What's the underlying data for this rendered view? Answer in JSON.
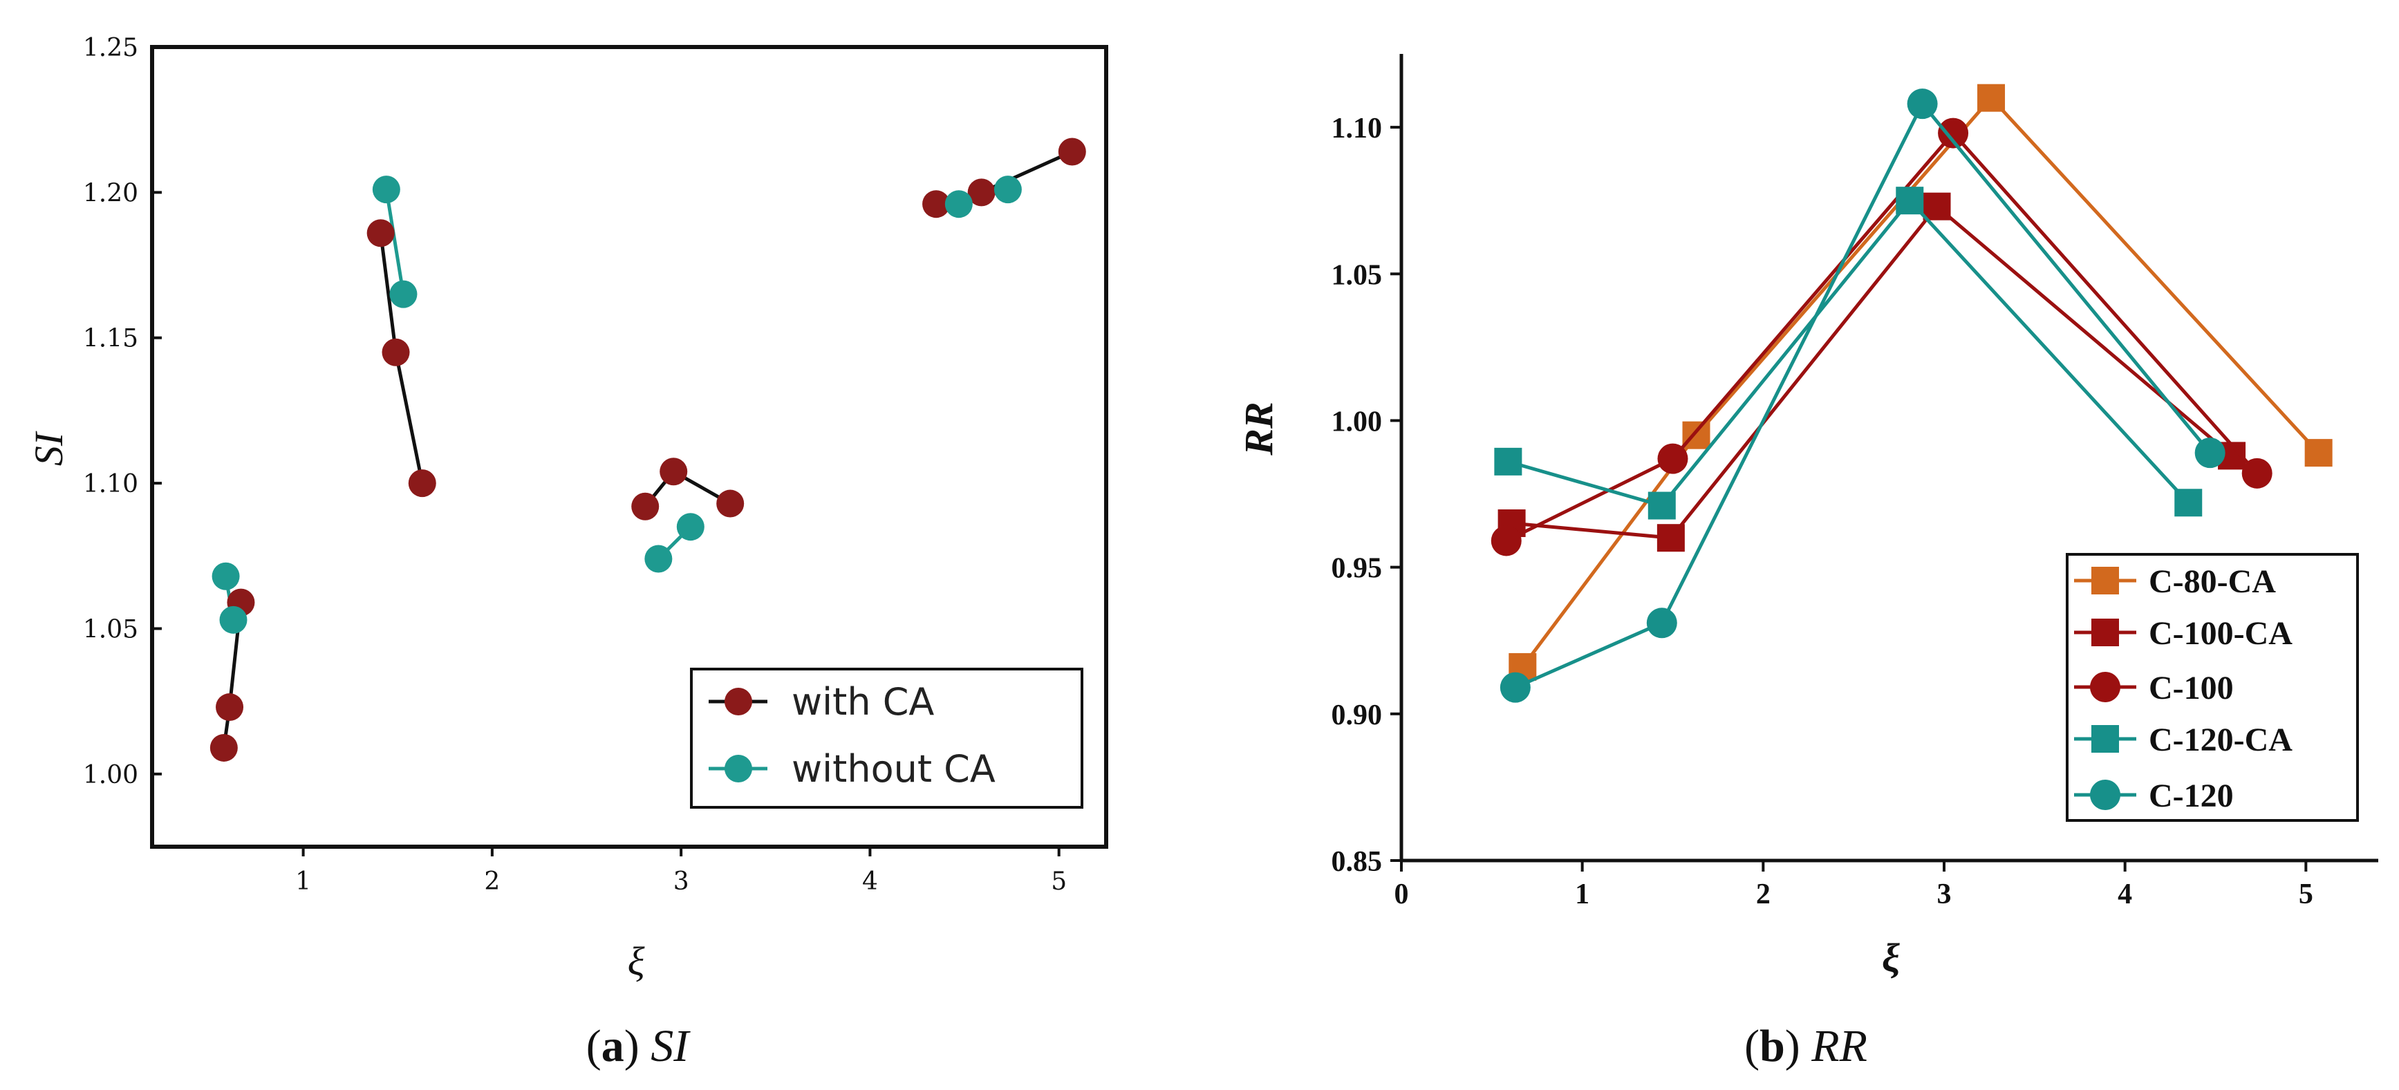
{
  "colors": {
    "with_ca": "#8b1a1a",
    "without_ca": "#1e9a90",
    "c80ca": "#d2691e",
    "c100ca": "#9b1010",
    "c100": "#9b1010",
    "c120ca": "#17908a",
    "c120": "#17908a",
    "line_black": "#111111"
  },
  "captions": {
    "a_letter": "a",
    "a_label": "SI",
    "b_letter": "b",
    "b_label": "RR"
  },
  "chart_data": [
    {
      "type": "scatter",
      "title": "",
      "xlabel": "ξ",
      "ylabel": "SI",
      "xlim": [
        0.2,
        5.25
      ],
      "ylim": [
        0.975,
        1.25
      ],
      "xticks": [
        1,
        2,
        3,
        4,
        5
      ],
      "yticks": [
        1.0,
        1.05,
        1.1,
        1.15,
        1.2,
        1.25
      ],
      "xtick_labels": [
        "1",
        "2",
        "3",
        "4",
        "5"
      ],
      "ytick_labels": [
        "1.00",
        "1.05",
        "1.10",
        "1.15",
        "1.20",
        "1.25"
      ],
      "legend": {
        "position": "bottom-right",
        "entries": [
          "with CA",
          "without CA"
        ]
      },
      "groups": [
        {
          "with_ca": [
            [
              0.58,
              1.009
            ],
            [
              0.61,
              1.023
            ],
            [
              0.67,
              1.059
            ]
          ],
          "without_ca": [
            [
              0.59,
              1.068
            ],
            [
              0.63,
              1.053
            ]
          ]
        },
        {
          "with_ca": [
            [
              1.41,
              1.186
            ],
            [
              1.49,
              1.145
            ],
            [
              1.63,
              1.1
            ]
          ],
          "without_ca": [
            [
              1.44,
              1.201
            ],
            [
              1.53,
              1.165
            ]
          ]
        },
        {
          "with_ca": [
            [
              2.81,
              1.092
            ],
            [
              2.96,
              1.104
            ],
            [
              3.26,
              1.093
            ]
          ],
          "without_ca": [
            [
              2.88,
              1.074
            ],
            [
              3.05,
              1.085
            ]
          ]
        },
        {
          "with_ca": [
            [
              4.35,
              1.196
            ],
            [
              4.59,
              1.2
            ],
            [
              5.07,
              1.214
            ]
          ],
          "without_ca": [
            [
              4.47,
              1.196
            ],
            [
              4.73,
              1.201
            ]
          ]
        }
      ]
    },
    {
      "type": "line",
      "title": "",
      "xlabel": "ξ",
      "ylabel": "RR",
      "xlim": [
        0,
        5.4
      ],
      "ylim": [
        0.85,
        1.125
      ],
      "xticks": [
        0,
        1,
        2,
        3,
        4,
        5
      ],
      "yticks": [
        0.85,
        0.9,
        0.95,
        1.0,
        1.05,
        1.1
      ],
      "xtick_labels": [
        "0",
        "1",
        "2",
        "3",
        "4",
        "5"
      ],
      "ytick_labels": [
        "0.85",
        "0.90",
        "0.95",
        "1.00",
        "1.05",
        "1.10"
      ],
      "legend": {
        "position": "bottom-right"
      },
      "series": [
        {
          "name": "C-80-CA",
          "marker": "square",
          "x": [
            0.67,
            1.63,
            3.26,
            5.07
          ],
          "y": [
            0.916,
            0.995,
            1.11,
            0.989
          ]
        },
        {
          "name": "C-100-CA",
          "marker": "square",
          "x": [
            0.61,
            1.49,
            2.96,
            4.59
          ],
          "y": [
            0.965,
            0.96,
            1.073,
            0.988
          ]
        },
        {
          "name": "C-100",
          "marker": "circle",
          "x": [
            0.58,
            1.5,
            3.05,
            4.73
          ],
          "y": [
            0.959,
            0.987,
            1.098,
            0.982
          ]
        },
        {
          "name": "C-120-CA",
          "marker": "square",
          "x": [
            0.59,
            1.44,
            2.81,
            4.35
          ],
          "y": [
            0.986,
            0.971,
            1.075,
            0.972
          ]
        },
        {
          "name": "C-120",
          "marker": "circle",
          "x": [
            0.63,
            1.44,
            2.88,
            4.47
          ],
          "y": [
            0.909,
            0.931,
            1.108,
            0.989
          ]
        }
      ]
    }
  ]
}
